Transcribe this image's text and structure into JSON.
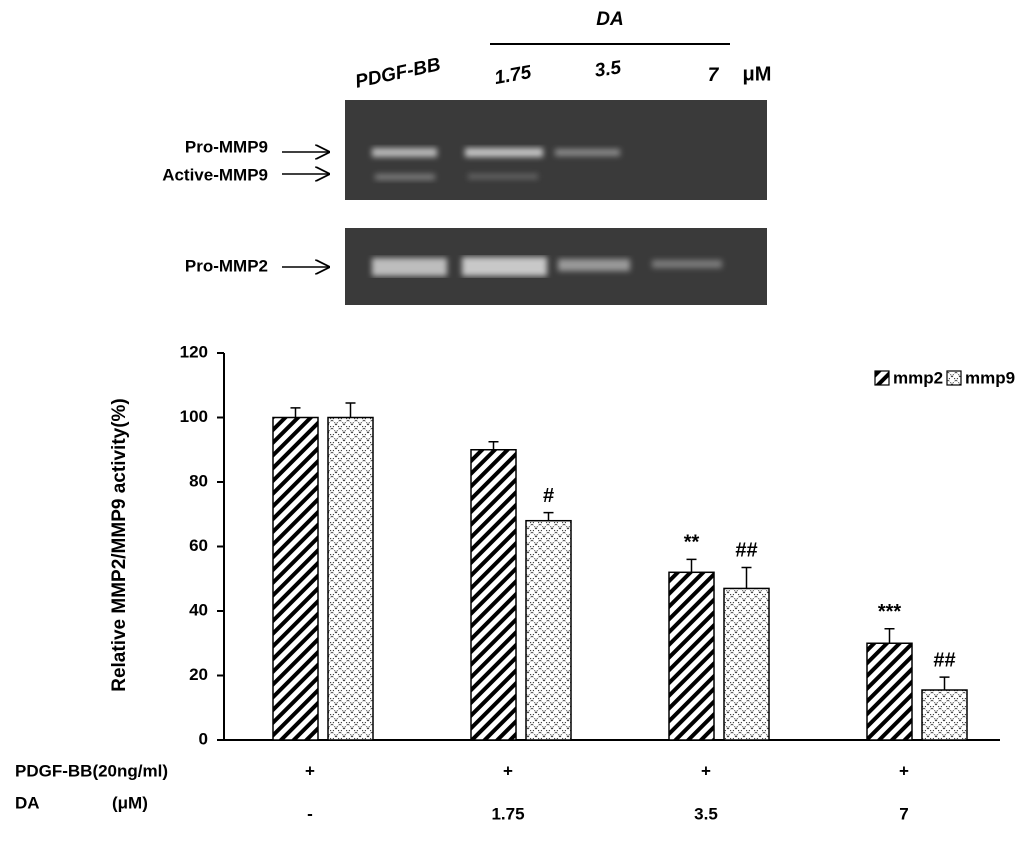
{
  "gel": {
    "treatment_label": "DA",
    "control_lane": "PDGF-BB",
    "lanes": [
      "1.75",
      "3.5",
      "7"
    ],
    "unit": "μM",
    "bands": [
      "Pro-MMP9",
      "Active-MMP9",
      "Pro-MMP2"
    ]
  },
  "chart_data": {
    "type": "bar",
    "y_label": "Relative MMP2/MMP9 activity(%)",
    "categories": [
      "-",
      "1.75",
      "3.5",
      "7"
    ],
    "category_label": "DA",
    "category_unit": "(μM)",
    "treatment_label": "PDGF-BB(20ng/ml)",
    "treatment_marks": [
      "+",
      "+",
      "+",
      "+"
    ],
    "series": [
      {
        "name": "mmp2",
        "color": "#000000",
        "pattern": "diagonal",
        "values": [
          100,
          90,
          52,
          30
        ],
        "errors": [
          3,
          2.5,
          4,
          4.5
        ],
        "annotations": [
          null,
          null,
          "**",
          "***"
        ]
      },
      {
        "name": "mmp9",
        "color": "#000000",
        "pattern": "crosshatch",
        "values": [
          100,
          68,
          47,
          15.5
        ],
        "errors": [
          4.5,
          2.5,
          6.5,
          4
        ],
        "annotations": [
          null,
          "#",
          "##",
          "##"
        ]
      }
    ],
    "ylim": [
      0,
      120
    ],
    "yticks": [
      0,
      20,
      40,
      60,
      80,
      100,
      120
    ],
    "grid": false,
    "legend": "upper right"
  }
}
